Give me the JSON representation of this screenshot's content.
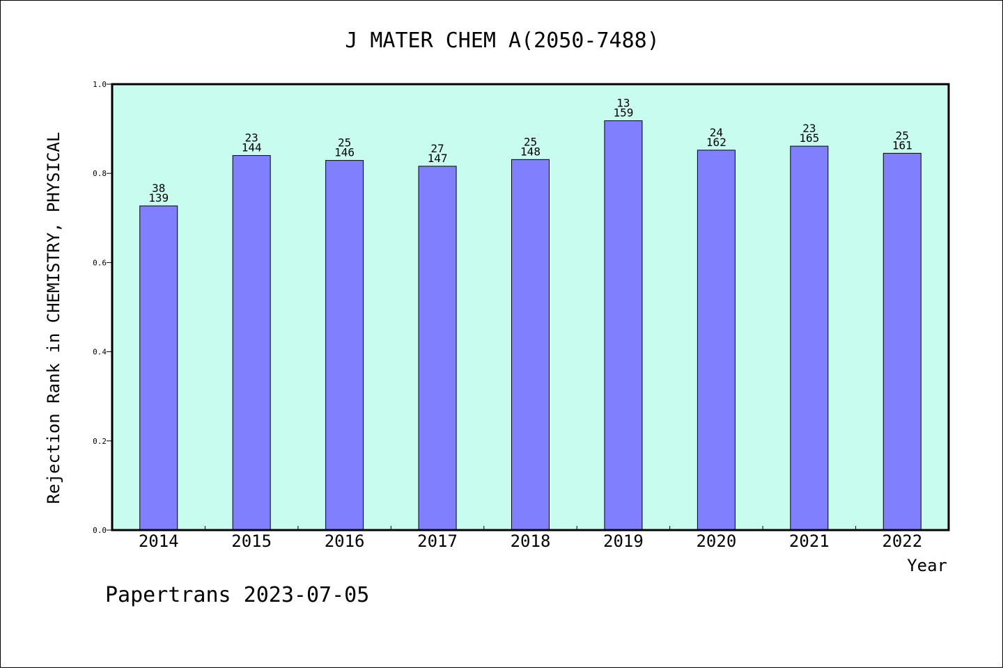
{
  "chart_data": {
    "type": "bar",
    "title": "J MATER CHEM A(2050-7488)",
    "xlabel": "Year",
    "ylabel": "Rejection Rank in CHEMISTRY, PHYSICAL",
    "ylim": [
      0,
      1.0
    ],
    "yticks": [
      "0.0",
      "0.2",
      "0.4",
      "0.6",
      "0.8",
      "1.0"
    ],
    "categories": [
      "2014",
      "2015",
      "2016",
      "2017",
      "2018",
      "2019",
      "2020",
      "2021",
      "2022"
    ],
    "values": [
      0.727,
      0.84,
      0.829,
      0.816,
      0.831,
      0.918,
      0.852,
      0.861,
      0.845
    ],
    "rank_labels": [
      "38",
      "23",
      "25",
      "27",
      "25",
      "13",
      "24",
      "23",
      "25"
    ],
    "total_labels": [
      "139",
      "144",
      "146",
      "147",
      "148",
      "159",
      "162",
      "165",
      "161"
    ],
    "grid": false,
    "legend": "none",
    "colors": {
      "plot_background": "#c8fcee",
      "bar_fill": "#8080ff",
      "bar_stroke": "#000000"
    }
  },
  "footer": "Papertrans 2023-07-05"
}
